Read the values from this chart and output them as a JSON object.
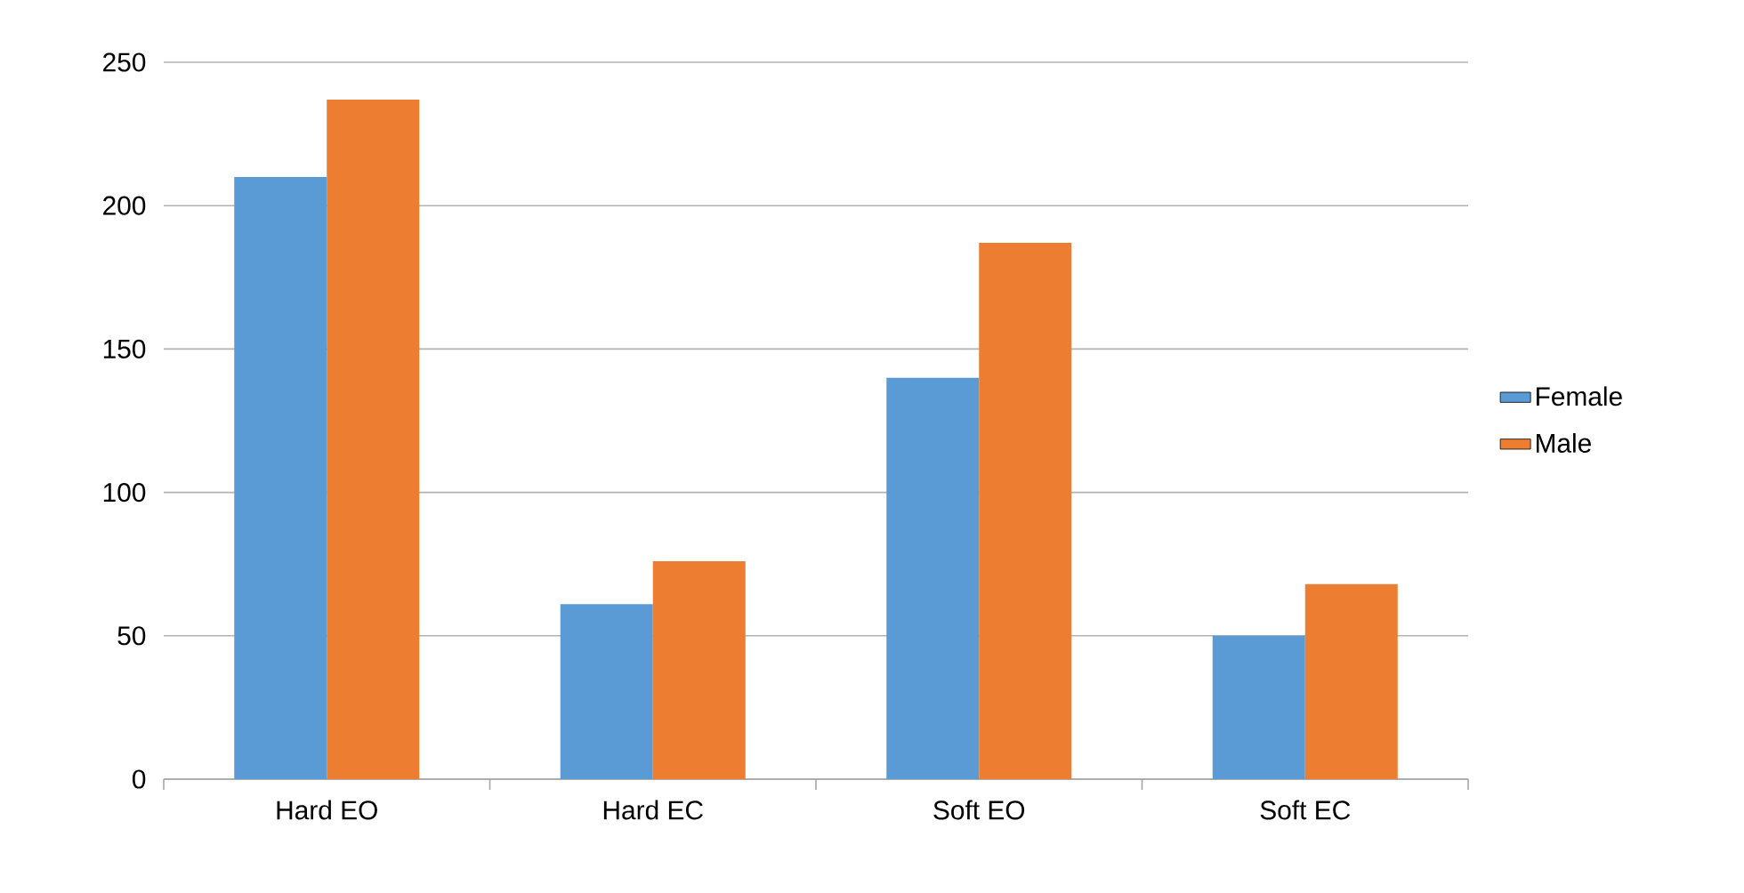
{
  "chart_data": {
    "type": "bar",
    "categories": [
      "Hard EO",
      "Hard EC",
      "Soft EO",
      "Soft EC"
    ],
    "series": [
      {
        "name": "Female",
        "color": "#5b9bd5",
        "values": [
          210,
          61,
          140,
          50
        ]
      },
      {
        "name": "Male",
        "color": "#ed7d31",
        "values": [
          237,
          76,
          187,
          68
        ]
      }
    ],
    "ylim": [
      0,
      250
    ],
    "yticks": [
      0,
      50,
      100,
      150,
      200,
      250
    ],
    "grid": "y",
    "legend": "right"
  }
}
